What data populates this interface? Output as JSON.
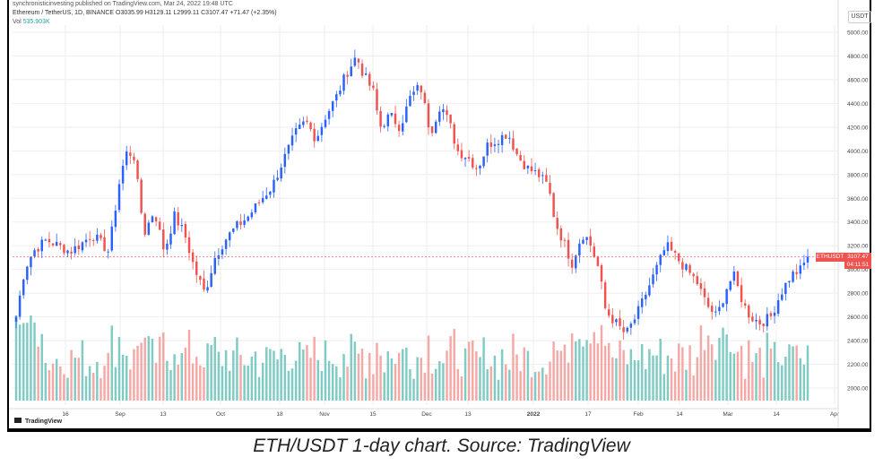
{
  "header": {
    "line1": "synchronisticinvesting published on TradingView.com, Mar 24, 2022 19:48 UTC",
    "line2": "Ethereum / TetherUS, 1D, BINANCE  O3035.99  H3129.11  L2999.11  C3107.47  +71.47 (+2.35%)",
    "vol_label": "Vol",
    "vol_value": "535.903K"
  },
  "unit": "USDT",
  "price_tag": {
    "symbol": "ETHUSDT",
    "price": "3107.47",
    "countdown": "04:11:51"
  },
  "footer": {
    "logo_text": "TradingView"
  },
  "caption": "ETH/USDT 1-day chart. Source: TradingView",
  "colors": {
    "up": "#26a69a",
    "up_body": "#2962ff",
    "down": "#ef5350",
    "vol_up": "#80cbc4",
    "vol_down": "#f4a9a7",
    "grid": "#eeeeee",
    "current": "#ef5350"
  },
  "chart_data": {
    "type": "candlestick",
    "title": "Ethereum / TetherUS, 1D, BINANCE",
    "ylim": [
      1850,
      5050
    ],
    "y_ticks": [
      "5000.00",
      "4800.00",
      "4600.00",
      "4400.00",
      "4200.00",
      "4000.00",
      "3800.00",
      "3600.00",
      "3400.00",
      "3200.00",
      "3000.00",
      "2800.00",
      "2600.00",
      "2400.00",
      "2200.00",
      "2000.00"
    ],
    "x_ticks": [
      "16",
      "Sep",
      "13",
      "Oct",
      "18",
      "Nov",
      "15",
      "Dec",
      "13",
      "2022",
      "17",
      "Feb",
      "14",
      "Mar",
      "14",
      "Apr"
    ],
    "current_price": 3107.47,
    "close_path": [
      [
        0,
        2600
      ],
      [
        5,
        3000
      ],
      [
        10,
        3150
      ],
      [
        18,
        3250
      ],
      [
        25,
        3200
      ],
      [
        32,
        3150
      ],
      [
        40,
        3230
      ],
      [
        45,
        3300
      ],
      [
        55,
        3150
      ],
      [
        62,
        3800
      ],
      [
        66,
        4000
      ],
      [
        70,
        3950
      ],
      [
        76,
        3300
      ],
      [
        82,
        3500
      ],
      [
        88,
        3150
      ],
      [
        94,
        3450
      ],
      [
        100,
        3300
      ],
      [
        106,
        3000
      ],
      [
        112,
        2800
      ],
      [
        118,
        3100
      ],
      [
        124,
        3250
      ],
      [
        130,
        3350
      ],
      [
        138,
        3450
      ],
      [
        146,
        3600
      ],
      [
        152,
        3700
      ],
      [
        158,
        3900
      ],
      [
        166,
        4150
      ],
      [
        172,
        4250
      ],
      [
        178,
        4100
      ],
      [
        184,
        4300
      ],
      [
        190,
        4450
      ],
      [
        196,
        4650
      ],
      [
        202,
        4800
      ],
      [
        206,
        4650
      ],
      [
        212,
        4500
      ],
      [
        216,
        4200
      ],
      [
        222,
        4300
      ],
      [
        228,
        4200
      ],
      [
        234,
        4450
      ],
      [
        240,
        4550
      ],
      [
        246,
        4150
      ],
      [
        252,
        4400
      ],
      [
        258,
        4200
      ],
      [
        262,
        4000
      ],
      [
        268,
        3950
      ],
      [
        274,
        3850
      ],
      [
        280,
        4050
      ],
      [
        286,
        4100
      ],
      [
        292,
        4150
      ],
      [
        298,
        3950
      ],
      [
        304,
        3850
      ],
      [
        310,
        3800
      ],
      [
        316,
        3700
      ],
      [
        320,
        3400
      ],
      [
        326,
        3200
      ],
      [
        330,
        3050
      ],
      [
        336,
        3300
      ],
      [
        340,
        3250
      ],
      [
        346,
        3000
      ],
      [
        350,
        2650
      ],
      [
        356,
        2550
      ],
      [
        362,
        2450
      ],
      [
        368,
        2600
      ],
      [
        374,
        2800
      ],
      [
        380,
        3000
      ],
      [
        386,
        3200
      ],
      [
        392,
        3100
      ],
      [
        398,
        3000
      ],
      [
        404,
        2900
      ],
      [
        410,
        2700
      ],
      [
        416,
        2600
      ],
      [
        422,
        2850
      ],
      [
        426,
        2950
      ],
      [
        432,
        2700
      ],
      [
        436,
        2600
      ],
      [
        442,
        2550
      ],
      [
        448,
        2600
      ],
      [
        454,
        2800
      ],
      [
        460,
        2950
      ],
      [
        466,
        3000
      ],
      [
        470,
        3107
      ]
    ],
    "volume_note": "daily volume bars, relative scale"
  }
}
